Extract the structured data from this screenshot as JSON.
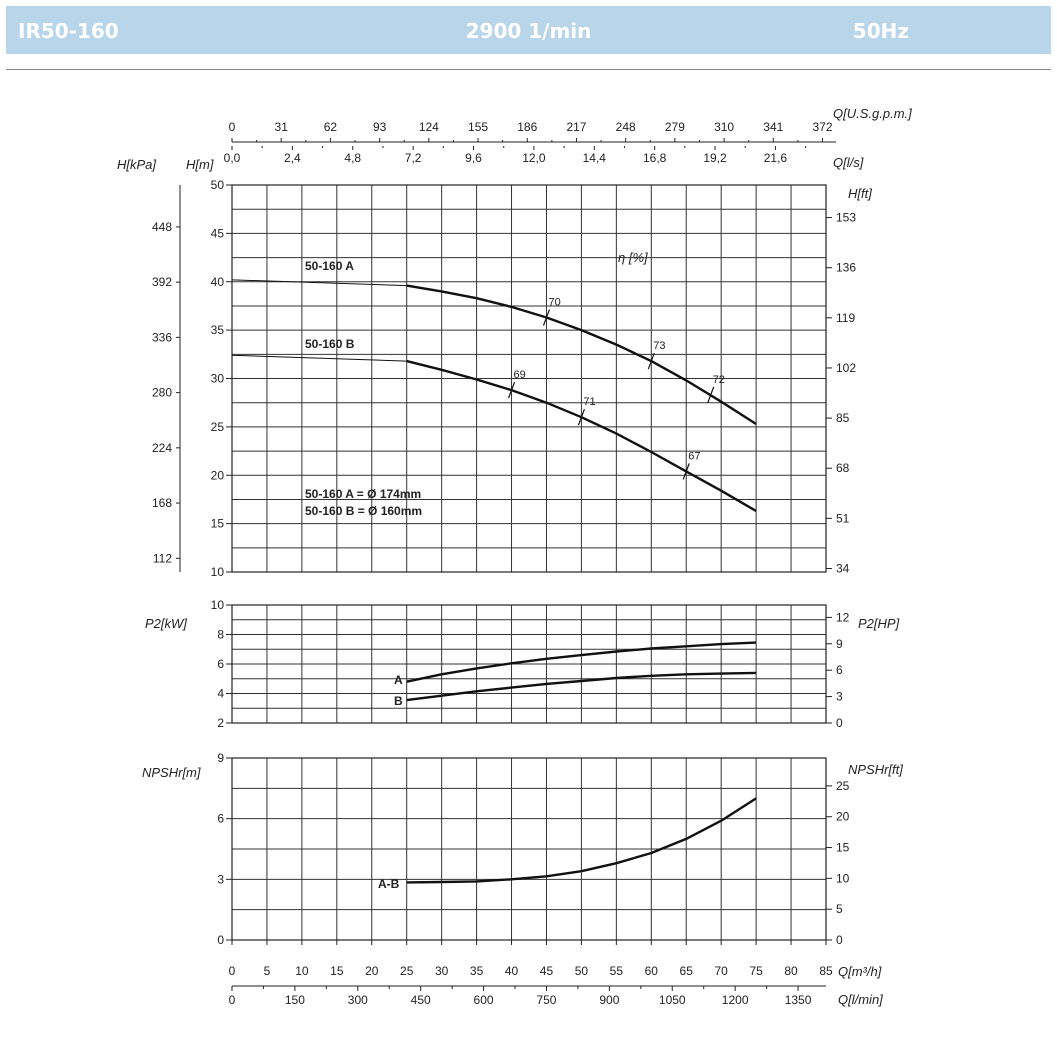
{
  "header": {
    "model": "IR50-160",
    "speed": "2900 1/min",
    "frequency": "50Hz",
    "band_color": "#b9d5ea"
  },
  "chart_data": {
    "type": "line",
    "flow_axes": {
      "m3h": {
        "label": "Q[m³/h]",
        "ticks": [
          0,
          5,
          10,
          15,
          20,
          25,
          30,
          35,
          40,
          45,
          50,
          55,
          60,
          65,
          70,
          75,
          80,
          85
        ],
        "range": [
          0,
          85
        ]
      },
      "lmin": {
        "label": "Q[l/min]",
        "ticks": [
          0,
          150,
          300,
          450,
          600,
          750,
          900,
          1050,
          1200,
          1350
        ]
      },
      "usgpm": {
        "label": "Q[U.S.g.p.m.]",
        "ticks": [
          0,
          31,
          62,
          93,
          124,
          155,
          186,
          217,
          248,
          279,
          310,
          341,
          372
        ]
      },
      "ls": {
        "label": "Q[l/s]",
        "ticks": [
          "0,0",
          "2,4",
          "4,8",
          "7,2",
          "9,6",
          "12,0",
          "14,4",
          "16,8",
          "19,2",
          "21,6"
        ]
      }
    },
    "head_panel": {
      "ylabel_m": "H[m]",
      "ylabel_kpa": "H[kPa]",
      "ylabel_ft": "H[ft]",
      "ylim": [
        10,
        50
      ],
      "ticks_m": [
        10,
        15,
        20,
        25,
        30,
        35,
        40,
        45,
        50
      ],
      "ticks_kpa": [
        112,
        168,
        224,
        280,
        336,
        392,
        448
      ],
      "ticks_ft": [
        34,
        51,
        68,
        85,
        102,
        119,
        136,
        153
      ],
      "efficiency_label": "η [%]",
      "legend": [
        "50-160 A = Ø 174mm",
        "50-160 B = Ø 160mm"
      ],
      "series": [
        {
          "name": "50-160 A",
          "x": [
            0,
            25,
            30,
            35,
            40,
            45,
            50,
            55,
            60,
            65,
            70,
            75
          ],
          "y": [
            40.2,
            39.6,
            39.0,
            38.3,
            37.4,
            36.3,
            35.0,
            33.5,
            31.8,
            29.8,
            27.6,
            25.3
          ]
        },
        {
          "name": "50-160 B",
          "x": [
            0,
            25,
            30,
            35,
            40,
            45,
            50,
            55,
            60,
            65,
            70,
            75
          ],
          "y": [
            32.4,
            31.8,
            30.9,
            29.9,
            28.8,
            27.5,
            26.0,
            24.3,
            22.4,
            20.4,
            18.4,
            16.3
          ]
        }
      ],
      "efficiency_marks": [
        {
          "label": "70",
          "x": 45,
          "y": 36.3
        },
        {
          "label": "73",
          "x": 60,
          "y": 31.8
        },
        {
          "label": "72",
          "x": 68.5,
          "y": 28.3
        },
        {
          "label": "69",
          "x": 40,
          "y": 28.8
        },
        {
          "label": "71",
          "x": 50,
          "y": 26.0
        },
        {
          "label": "67",
          "x": 65,
          "y": 20.4
        }
      ]
    },
    "power_panel": {
      "ylabel_kw": "P2[kW]",
      "ylabel_hp": "P2[HP]",
      "ylim": [
        2,
        10
      ],
      "ticks_kw": [
        2,
        4,
        6,
        8,
        10
      ],
      "ticks_hp": [
        0,
        3,
        6,
        9,
        12
      ],
      "series": [
        {
          "name": "A",
          "x": [
            25,
            30,
            35,
            40,
            45,
            50,
            55,
            60,
            65,
            70,
            75
          ],
          "y": [
            4.8,
            5.3,
            5.7,
            6.05,
            6.35,
            6.6,
            6.85,
            7.05,
            7.2,
            7.35,
            7.45
          ]
        },
        {
          "name": "B",
          "x": [
            25,
            30,
            35,
            40,
            45,
            50,
            55,
            60,
            65,
            70,
            75
          ],
          "y": [
            3.55,
            3.85,
            4.15,
            4.4,
            4.65,
            4.85,
            5.05,
            5.2,
            5.3,
            5.35,
            5.4
          ]
        }
      ]
    },
    "npsh_panel": {
      "ylabel_m": "NPSHr[m]",
      "ylabel_ft": "NPSHr[ft]",
      "ylim": [
        0,
        9
      ],
      "ticks_m": [
        0,
        3,
        6,
        9
      ],
      "ticks_ft": [
        0,
        5,
        10,
        15,
        20,
        25
      ],
      "series": [
        {
          "name": "A-B",
          "x": [
            25,
            30,
            35,
            40,
            45,
            50,
            55,
            60,
            65,
            70,
            75
          ],
          "y": [
            2.85,
            2.87,
            2.9,
            3.0,
            3.15,
            3.4,
            3.8,
            4.3,
            5.0,
            5.9,
            7.0
          ]
        }
      ]
    }
  }
}
